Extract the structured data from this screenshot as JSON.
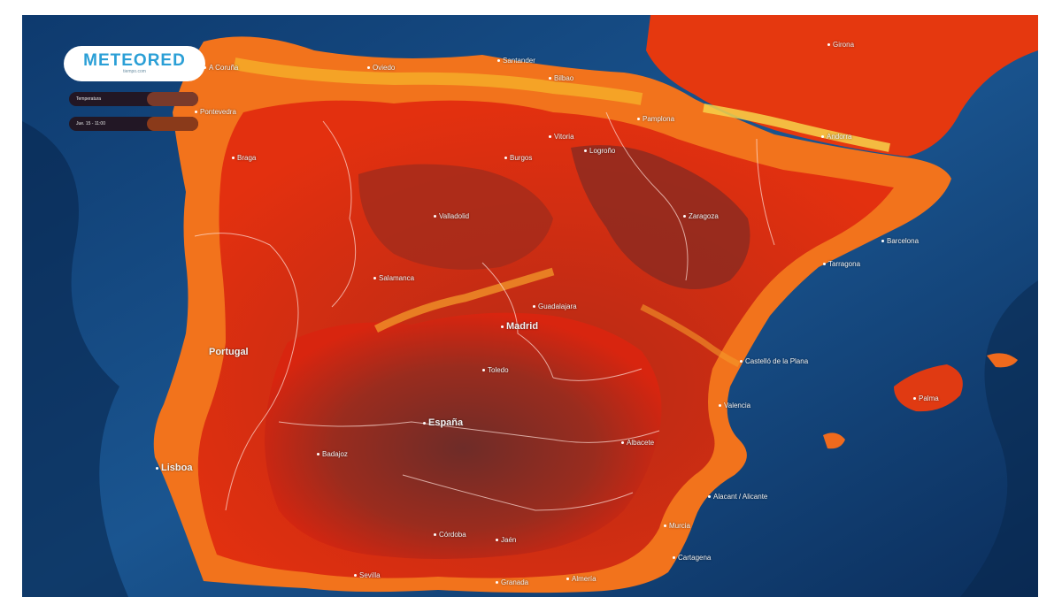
{
  "brand": {
    "name": "METEORED",
    "tagline": "tiempo.com"
  },
  "legend": {
    "variable": "Temperatura",
    "datetime": "Jue. 15 - 11:00"
  },
  "colors": {
    "sea_deep": "#0b2a55",
    "sea": "#1a4f86",
    "land_orange": "#f2731c",
    "land_red": "#e2260f",
    "land_dark": "#7a2a22",
    "mountain_yellow": "#f6c23a",
    "borders": "#ffe0d8"
  },
  "places": {
    "coruna": "A Coruña",
    "oviedo": "Oviedo",
    "santander": "Santander",
    "bilbao": "Bilbao",
    "vitoria": "Vitoria",
    "pamplona": "Pamplona",
    "andorra": "Andorra",
    "pontevedra": "Pontevedra",
    "burgos": "Burgos",
    "logrono": "Logroño",
    "valladolid": "Valladolid",
    "zaragoza": "Zaragoza",
    "girona": "Girona",
    "barcelona": "Barcelona",
    "tarragona": "Tarragona",
    "braga": "Braga",
    "salamanca": "Salamanca",
    "guadalajara": "Guadalajara",
    "madrid": "Madrid",
    "toledo": "Toledo",
    "castellon": "Castelló de la Plana",
    "valencia": "Valencia",
    "portugal": "Portugal",
    "espana": "España",
    "lisboa": "Lisboa",
    "badajoz": "Badajoz",
    "albacete": "Albacete",
    "alicante": "Alacant / Alicante",
    "palma": "Palma",
    "cordoba": "Córdoba",
    "jaen": "Jaén",
    "murcia": "Murcia",
    "granada": "Granada",
    "almeria": "Almería",
    "cartagena": "Cartagena",
    "sevilla": "Sevilla"
  }
}
